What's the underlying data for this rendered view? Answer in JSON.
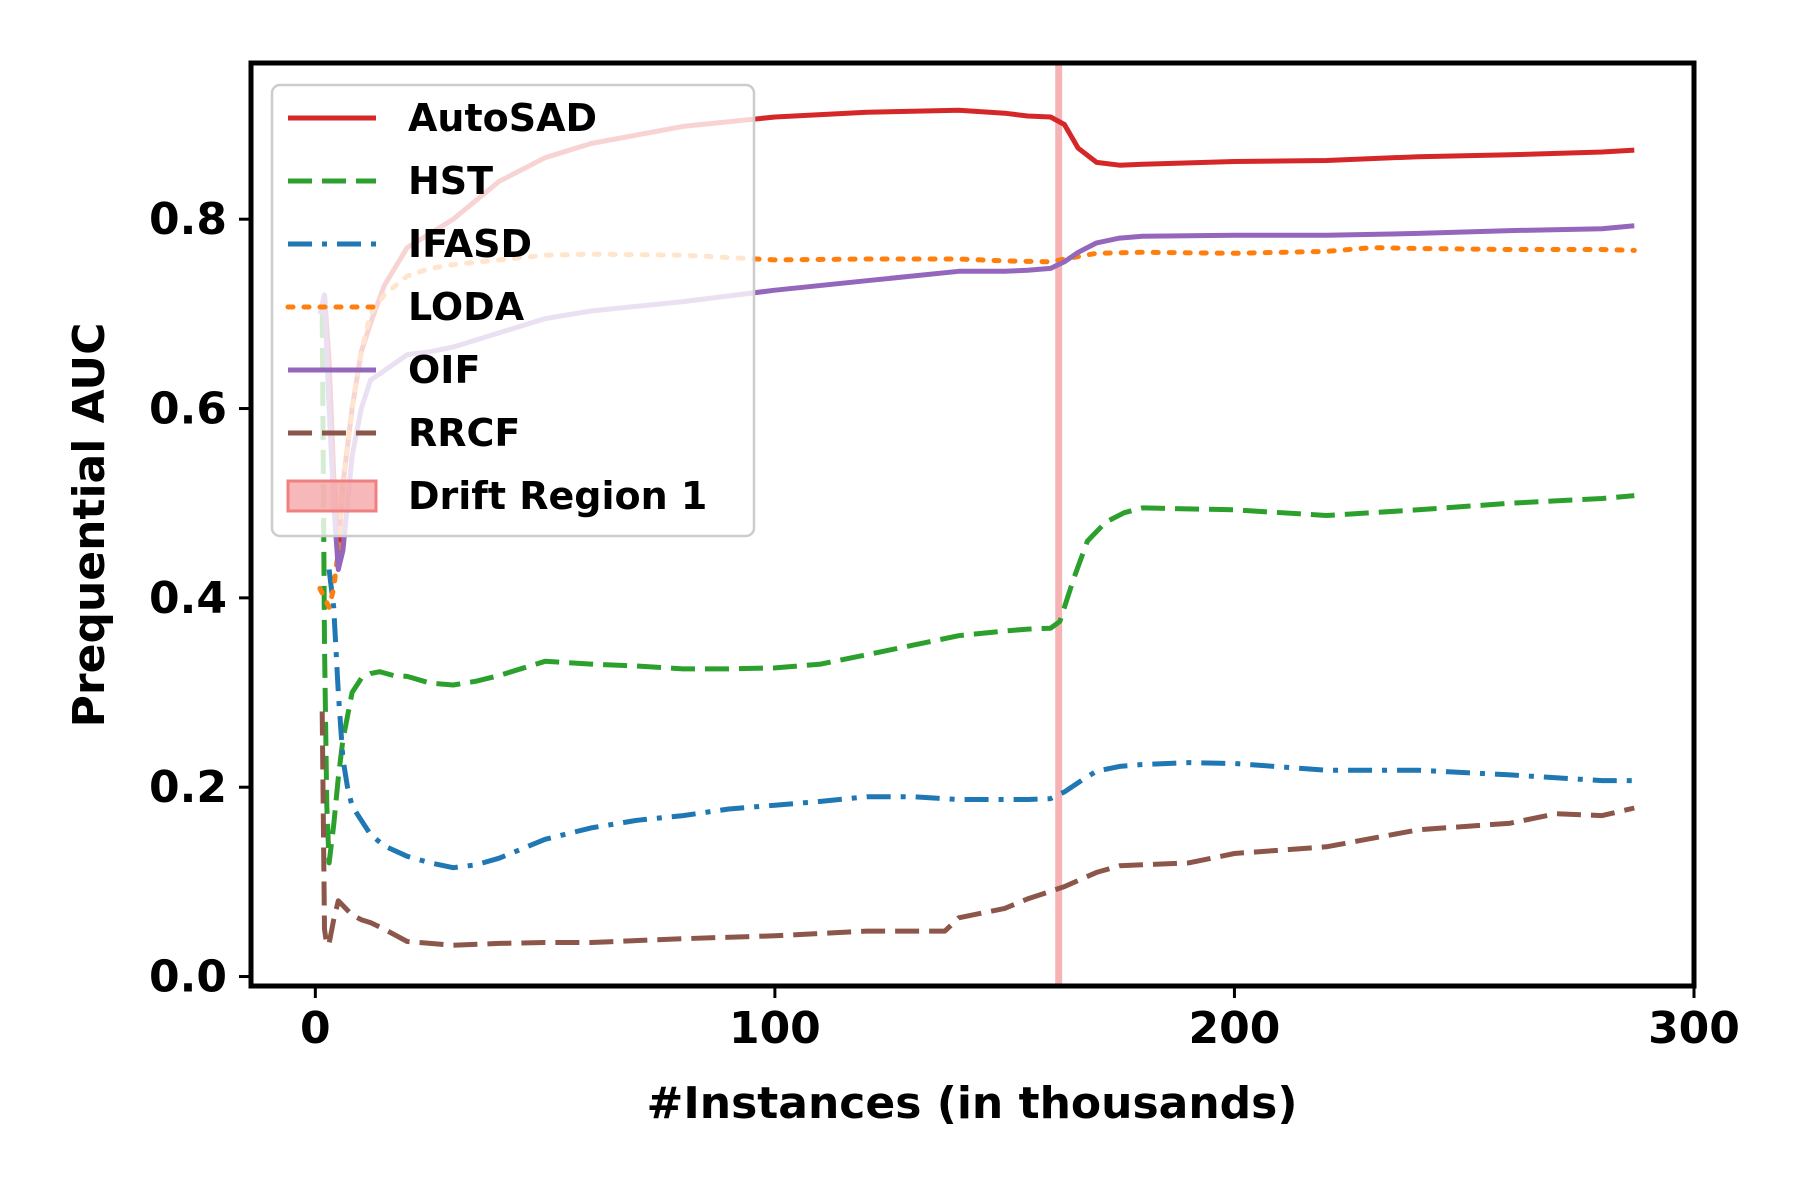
{
  "chart_data": {
    "type": "line",
    "xlabel": "#Instances (in thousands)",
    "ylabel": "Prequential AUC",
    "xlim": [
      -14,
      300
    ],
    "ylim": [
      -0.01,
      0.965
    ],
    "xticks": [
      0,
      100,
      200,
      300
    ],
    "xtick_labels": [
      "0",
      "100",
      "200",
      "300"
    ],
    "yticks": [
      0.0,
      0.2,
      0.4,
      0.6,
      0.8
    ],
    "ytick_labels": [
      "0.0",
      "0.2",
      "0.4",
      "0.6",
      "0.8"
    ],
    "grid": false,
    "legend_position": "top-left",
    "drift_region": {
      "name": "Drift Region 1",
      "x_start": 161,
      "x_end": 162.5,
      "color": "#f4a6a6"
    },
    "series": [
      {
        "name": "AutoSAD",
        "color": "#d62728",
        "dash": "solid",
        "x": [
          2,
          3,
          4,
          5,
          6,
          8,
          10,
          12,
          15,
          20,
          25,
          30,
          35,
          40,
          50,
          60,
          80,
          100,
          120,
          140,
          150,
          155,
          160,
          163,
          166,
          170,
          175,
          180,
          200,
          220,
          240,
          260,
          280,
          287
        ],
        "y": [
          0.72,
          0.65,
          0.53,
          0.45,
          0.52,
          0.6,
          0.66,
          0.69,
          0.73,
          0.77,
          0.785,
          0.8,
          0.82,
          0.84,
          0.865,
          0.88,
          0.898,
          0.908,
          0.913,
          0.915,
          0.912,
          0.909,
          0.908,
          0.9,
          0.875,
          0.86,
          0.857,
          0.858,
          0.861,
          0.862,
          0.866,
          0.868,
          0.871,
          0.873
        ]
      },
      {
        "name": "HST",
        "color": "#2ca02c",
        "dash": "dashed",
        "x": [
          1.5,
          2,
          2.5,
          3,
          4,
          5,
          6,
          8,
          10,
          12,
          14,
          17,
          20,
          25,
          30,
          35,
          40,
          50,
          60,
          70,
          80,
          90,
          100,
          110,
          120,
          130,
          140,
          150,
          155,
          160,
          162,
          165,
          168,
          172,
          176,
          180,
          200,
          220,
          240,
          260,
          280,
          287
        ],
        "y": [
          0.7,
          0.35,
          0.18,
          0.12,
          0.16,
          0.21,
          0.25,
          0.3,
          0.315,
          0.32,
          0.322,
          0.318,
          0.317,
          0.31,
          0.308,
          0.312,
          0.318,
          0.333,
          0.33,
          0.328,
          0.325,
          0.325,
          0.326,
          0.33,
          0.34,
          0.35,
          0.36,
          0.365,
          0.367,
          0.368,
          0.375,
          0.42,
          0.46,
          0.48,
          0.49,
          0.495,
          0.493,
          0.487,
          0.493,
          0.5,
          0.505,
          0.508
        ]
      },
      {
        "name": "IFASD",
        "color": "#1f77b4",
        "dash": "dashdot",
        "x": [
          3,
          3.5,
          4,
          5,
          6,
          7,
          8,
          10,
          12,
          15,
          20,
          25,
          30,
          35,
          40,
          50,
          60,
          70,
          80,
          90,
          100,
          110,
          120,
          130,
          140,
          150,
          155,
          160,
          163,
          167,
          170,
          175,
          180,
          190,
          200,
          220,
          240,
          260,
          280,
          287
        ],
        "y": [
          0.43,
          0.41,
          0.39,
          0.3,
          0.23,
          0.2,
          0.18,
          0.165,
          0.15,
          0.138,
          0.127,
          0.12,
          0.115,
          0.118,
          0.125,
          0.145,
          0.157,
          0.165,
          0.17,
          0.177,
          0.181,
          0.185,
          0.19,
          0.19,
          0.187,
          0.187,
          0.187,
          0.188,
          0.195,
          0.208,
          0.217,
          0.222,
          0.224,
          0.226,
          0.225,
          0.218,
          0.218,
          0.213,
          0.207,
          0.207
        ]
      },
      {
        "name": "LODA",
        "color": "#ff7f0e",
        "dash": "dotted",
        "x": [
          1,
          2,
          3,
          4,
          5,
          6,
          8,
          10,
          12,
          15,
          20,
          25,
          30,
          40,
          50,
          60,
          80,
          100,
          120,
          140,
          150,
          160,
          163,
          170,
          180,
          200,
          220,
          230,
          240,
          260,
          280,
          287
        ],
        "y": [
          0.41,
          0.4,
          0.39,
          0.41,
          0.45,
          0.52,
          0.6,
          0.66,
          0.7,
          0.72,
          0.74,
          0.748,
          0.752,
          0.757,
          0.762,
          0.763,
          0.762,
          0.757,
          0.758,
          0.758,
          0.756,
          0.755,
          0.758,
          0.764,
          0.765,
          0.764,
          0.766,
          0.77,
          0.769,
          0.768,
          0.768,
          0.767
        ]
      },
      {
        "name": "OIF",
        "color": "#9467bd",
        "dash": "solid",
        "x": [
          1,
          2,
          3,
          4,
          5,
          6,
          8,
          10,
          12,
          15,
          20,
          25,
          30,
          40,
          50,
          60,
          80,
          100,
          120,
          140,
          150,
          155,
          160,
          163,
          166,
          170,
          175,
          180,
          200,
          220,
          240,
          260,
          280,
          287
        ],
        "y": [
          0.7,
          0.72,
          0.6,
          0.5,
          0.43,
          0.45,
          0.55,
          0.6,
          0.63,
          0.64,
          0.657,
          0.66,
          0.665,
          0.68,
          0.695,
          0.703,
          0.713,
          0.725,
          0.735,
          0.745,
          0.745,
          0.746,
          0.748,
          0.755,
          0.765,
          0.775,
          0.78,
          0.782,
          0.783,
          0.783,
          0.785,
          0.788,
          0.79,
          0.793
        ]
      },
      {
        "name": "RRCF",
        "color": "#8c564b",
        "dash": "dashed",
        "x": [
          1.5,
          2,
          2.5,
          3,
          4,
          5,
          6,
          8,
          10,
          12,
          15,
          20,
          25,
          30,
          40,
          50,
          60,
          80,
          100,
          120,
          130,
          137,
          140,
          150,
          155,
          160,
          163,
          170,
          175,
          180,
          190,
          200,
          220,
          240,
          260,
          270,
          280,
          287
        ],
        "y": [
          0.28,
          0.05,
          0.033,
          0.035,
          0.06,
          0.08,
          0.075,
          0.065,
          0.06,
          0.057,
          0.05,
          0.037,
          0.035,
          0.033,
          0.035,
          0.036,
          0.036,
          0.04,
          0.043,
          0.048,
          0.048,
          0.048,
          0.062,
          0.072,
          0.082,
          0.09,
          0.095,
          0.11,
          0.117,
          0.118,
          0.12,
          0.13,
          0.137,
          0.155,
          0.162,
          0.172,
          0.17,
          0.178
        ]
      }
    ]
  }
}
